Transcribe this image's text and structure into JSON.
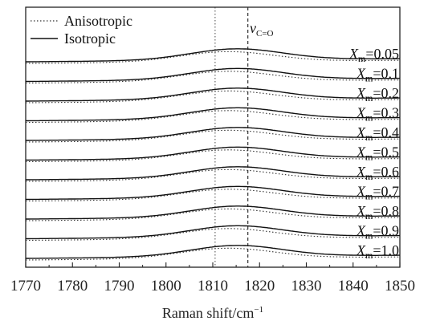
{
  "chart_data": {
    "type": "line",
    "title": "",
    "xlabel": "Raman shift/cm",
    "xlabel_superscript": "−1",
    "ylabel": "",
    "xlim": [
      1770,
      1850
    ],
    "xticks": [
      1770,
      1780,
      1790,
      1800,
      1810,
      1820,
      1830,
      1840,
      1850
    ],
    "grid": false,
    "legend": {
      "placement": "top-left",
      "entries": [
        {
          "label": "Anisotropic",
          "style": "dotted"
        },
        {
          "label": "Isotropic",
          "style": "solid"
        }
      ]
    },
    "annotations": {
      "peak_symbol": "ν",
      "peak_subscript": "C=O",
      "reference_lines_x": [
        1810.5,
        1817.5
      ]
    },
    "label_prefix": "X",
    "label_subscript": "m",
    "series": [
      {
        "label_value": "=0.05"
      },
      {
        "label_value": "=0.1"
      },
      {
        "label_value": "=0.2"
      },
      {
        "label_value": "=0.3"
      },
      {
        "label_value": "=0.4"
      },
      {
        "label_value": "=0.5"
      },
      {
        "label_value": "=0.6"
      },
      {
        "label_value": "=0.7"
      },
      {
        "label_value": "=0.8"
      },
      {
        "label_value": "=0.9"
      },
      {
        "label_value": "=1.0"
      }
    ]
  }
}
